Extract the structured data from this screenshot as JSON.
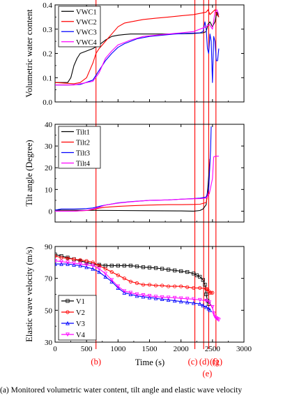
{
  "caption": "(a) Monitored volumetric water content, tilt angle and elastic wave velocity",
  "event_markers": {
    "color": "#ff0000",
    "items": [
      {
        "label": "(b)",
        "x": 650
      },
      {
        "label": "(c)",
        "x": 2220
      },
      {
        "label": "(d)",
        "x": 2360
      },
      {
        "label": "(e)",
        "x": 2440
      },
      {
        "label": "(f)",
        "x": 2440
      },
      {
        "label": "(g)",
        "x": 2555
      }
    ]
  },
  "chart_data": [
    {
      "type": "line",
      "id": "vwc",
      "ylabel": "Volumetric water content",
      "xlim": [
        0,
        3000
      ],
      "ylim": [
        0.0,
        0.4
      ],
      "yticks": [
        0.0,
        0.1,
        0.2,
        0.3,
        0.4
      ],
      "ytick_labels": [
        "0.0",
        "0.1",
        "0.2",
        "0.3",
        "0.4"
      ],
      "show_x_ticklabels": false,
      "legend": "top-left",
      "series": [
        {
          "name": "VWC1",
          "color": "#000000",
          "marker": "none",
          "x": [
            0,
            200,
            250,
            300,
            350,
            400,
            500,
            600,
            700,
            800,
            900,
            1000,
            1100,
            1200,
            1500,
            1800,
            2000,
            2200,
            2350,
            2400,
            2430,
            2460,
            2500,
            2540,
            2570,
            2600
          ],
          "y": [
            0.08,
            0.08,
            0.1,
            0.15,
            0.18,
            0.2,
            0.21,
            0.22,
            0.235,
            0.255,
            0.27,
            0.275,
            0.278,
            0.28,
            0.28,
            0.28,
            0.281,
            0.282,
            0.285,
            0.29,
            0.32,
            0.33,
            0.31,
            0.33,
            0.37,
            0.35
          ]
        },
        {
          "name": "VWC2",
          "color": "#ff0000",
          "marker": "none",
          "x": [
            0,
            300,
            400,
            500,
            550,
            600,
            650,
            700,
            800,
            900,
            1000,
            1100,
            1200,
            1400,
            1600,
            1800,
            2000,
            2200,
            2300,
            2400,
            2430,
            2460,
            2500,
            2540,
            2570,
            2600
          ],
          "y": [
            0.08,
            0.075,
            0.08,
            0.1,
            0.13,
            0.16,
            0.2,
            0.22,
            0.25,
            0.28,
            0.31,
            0.325,
            0.33,
            0.34,
            0.345,
            0.35,
            0.355,
            0.36,
            0.365,
            0.37,
            0.38,
            0.36,
            0.37,
            0.38,
            0.36,
            0.35
          ]
        },
        {
          "name": "VWC3",
          "color": "#0000ff",
          "marker": "none",
          "x": [
            0,
            200,
            400,
            600,
            700,
            800,
            900,
            1000,
            1100,
            1300,
            1500,
            1700,
            1900,
            2100,
            2300,
            2350,
            2380,
            2400,
            2420,
            2440,
            2460,
            2480,
            2500,
            2520,
            2540,
            2560,
            2580,
            2600
          ],
          "y": [
            0.07,
            0.07,
            0.072,
            0.09,
            0.13,
            0.17,
            0.2,
            0.225,
            0.24,
            0.26,
            0.27,
            0.275,
            0.28,
            0.283,
            0.285,
            0.29,
            0.33,
            0.3,
            0.22,
            0.2,
            0.28,
            0.25,
            0.08,
            0.27,
            0.25,
            0.17,
            0.17,
            0.22
          ]
        },
        {
          "name": "VWC4",
          "color": "#ff00ff",
          "marker": "none",
          "x": [
            0,
            300,
            500,
            600,
            700,
            800,
            900,
            1000,
            1100,
            1200,
            1400,
            1600,
            1800,
            2000,
            2200,
            2300,
            2400,
            2450,
            2500,
            2540,
            2570,
            2600
          ],
          "y": [
            0.07,
            0.07,
            0.08,
            0.085,
            0.12,
            0.18,
            0.21,
            0.235,
            0.245,
            0.255,
            0.27,
            0.275,
            0.28,
            0.285,
            0.29,
            0.3,
            0.31,
            0.32,
            0.3,
            0.37,
            0.38,
            0.36
          ]
        }
      ]
    },
    {
      "type": "line",
      "id": "tilt",
      "ylabel": "Tilt angle (Degree)",
      "xlim": [
        0,
        3000
      ],
      "ylim": [
        -5,
        40
      ],
      "yticks": [
        0,
        10,
        20,
        30,
        40
      ],
      "ytick_labels": [
        "0",
        "10",
        "20",
        "30",
        "40"
      ],
      "show_x_ticklabels": false,
      "legend": "top-left",
      "series": [
        {
          "name": "Tilt1",
          "color": "#000000",
          "marker": "none",
          "x": [
            0,
            500,
            1000,
            1500,
            2000,
            2200,
            2300,
            2350,
            2400,
            2430,
            2460
          ],
          "y": [
            0.5,
            0.4,
            0.3,
            0.2,
            0.1,
            0.0,
            0.3,
            1.0,
            3.0,
            12.0,
            24.0
          ]
        },
        {
          "name": "Tilt2",
          "color": "#ff0000",
          "marker": "none",
          "x": [
            0,
            300,
            500,
            600,
            700,
            800,
            900,
            1000,
            1200,
            1500,
            1800,
            2000,
            2200,
            2300,
            2400,
            2440,
            2460
          ],
          "y": [
            0.0,
            0.0,
            0.3,
            0.8,
            1.4,
            1.8,
            2.0,
            2.2,
            2.5,
            2.8,
            3.0,
            3.0,
            3.1,
            3.2,
            4.0,
            10.0,
            24.0
          ]
        },
        {
          "name": "Tilt3",
          "color": "#0000ff",
          "marker": "none",
          "x": [
            0,
            100,
            300,
            500,
            600,
            700,
            800,
            900,
            1000,
            1200,
            1500,
            1800,
            2000,
            2200,
            2300,
            2400,
            2440,
            2470,
            2480
          ],
          "y": [
            0.5,
            1.0,
            1.0,
            1.2,
            1.5,
            2.2,
            2.8,
            3.3,
            3.8,
            4.4,
            5.0,
            5.2,
            5.5,
            5.8,
            6.0,
            6.5,
            10.0,
            28.0,
            39.0
          ]
        },
        {
          "name": "Tilt4",
          "color": "#ff00ff",
          "marker": "none",
          "x": [
            0,
            300,
            500,
            600,
            700,
            800,
            1000,
            1200,
            1500,
            1800,
            2000,
            2200,
            2300,
            2400,
            2450,
            2500,
            2520,
            2550,
            2600
          ],
          "y": [
            0.0,
            0.0,
            0.4,
            1.0,
            1.8,
            2.8,
            3.7,
            4.3,
            5.0,
            5.2,
            5.5,
            5.7,
            5.8,
            6.0,
            8.0,
            15.0,
            25.0,
            25.3,
            25.3
          ]
        }
      ]
    },
    {
      "type": "line",
      "id": "velocity",
      "ylabel": "Elastic wave velocity (m/s)",
      "xlabel": "Time (s)",
      "xlim": [
        0,
        3000
      ],
      "ylim": [
        30,
        90
      ],
      "yticks": [
        30,
        50,
        70,
        90
      ],
      "ytick_labels": [
        "30",
        "50",
        "70",
        "90"
      ],
      "xticks": [
        0,
        500,
        1000,
        1500,
        2000,
        2500,
        3000
      ],
      "xtick_labels": [
        "0",
        "500",
        "1000",
        "1500",
        "2000",
        "2500",
        "3000"
      ],
      "legend": "bottom-left",
      "series": [
        {
          "name": "V1",
          "color": "#000000",
          "marker": "square",
          "x": [
            0,
            100,
            200,
            300,
            400,
            500,
            600,
            700,
            800,
            900,
            1000,
            1100,
            1200,
            1300,
            1400,
            1500,
            1600,
            1700,
            1800,
            1900,
            2000,
            2100,
            2200,
            2250,
            2300,
            2350,
            2380,
            2400,
            2420,
            2440
          ],
          "y": [
            85,
            84,
            83,
            82,
            81,
            80,
            79,
            78.5,
            78,
            78,
            78,
            78,
            78,
            77.5,
            77,
            76.8,
            76.5,
            76,
            75.5,
            75,
            74.5,
            74,
            73,
            72,
            71,
            69,
            66,
            60,
            56,
            54
          ]
        },
        {
          "name": "V2",
          "color": "#ff0000",
          "marker": "circle",
          "x": [
            0,
            100,
            200,
            300,
            400,
            500,
            600,
            700,
            800,
            900,
            1000,
            1100,
            1200,
            1300,
            1400,
            1500,
            1600,
            1700,
            1800,
            1900,
            2000,
            2100,
            2200,
            2300,
            2400,
            2420,
            2440,
            2460,
            2480,
            2500
          ],
          "y": [
            84,
            83,
            82.5,
            82,
            81.5,
            81,
            80,
            78,
            76,
            74,
            72,
            70,
            68,
            67,
            66,
            66,
            65.5,
            65.5,
            65,
            65,
            65,
            64.5,
            64,
            64,
            63.5,
            63,
            62,
            61,
            61,
            61
          ]
        },
        {
          "name": "V3",
          "color": "#0000ff",
          "marker": "triangle",
          "x": [
            0,
            100,
            200,
            300,
            400,
            500,
            600,
            700,
            800,
            900,
            1000,
            1100,
            1200,
            1300,
            1400,
            1500,
            1600,
            1700,
            1800,
            1900,
            2000,
            2100,
            2200,
            2300,
            2350,
            2400,
            2440,
            2460
          ],
          "y": [
            79,
            79,
            79,
            78.5,
            78,
            77,
            76,
            74,
            71,
            68,
            64,
            61,
            60,
            59,
            58.5,
            58,
            57.5,
            57,
            56.5,
            56,
            55.5,
            55,
            54.5,
            54,
            53,
            52,
            51,
            50
          ]
        },
        {
          "name": "V4",
          "color": "#ff00ff",
          "marker": "triangle-down",
          "x": [
            0,
            100,
            200,
            300,
            400,
            500,
            600,
            700,
            800,
            900,
            1000,
            1100,
            1200,
            1300,
            1400,
            1500,
            1600,
            1700,
            1800,
            1900,
            2000,
            2100,
            2200,
            2300,
            2400,
            2450,
            2500,
            2520,
            2540,
            2560,
            2580,
            2600
          ],
          "y": [
            81,
            80.5,
            80,
            79.5,
            79,
            78.5,
            78,
            76,
            73,
            69,
            65,
            62,
            61,
            60,
            59.5,
            59,
            58.5,
            58.2,
            58,
            57.8,
            57.5,
            57.2,
            57,
            56.5,
            56,
            55,
            52,
            48,
            46,
            45,
            44.5,
            44
          ]
        }
      ]
    }
  ]
}
